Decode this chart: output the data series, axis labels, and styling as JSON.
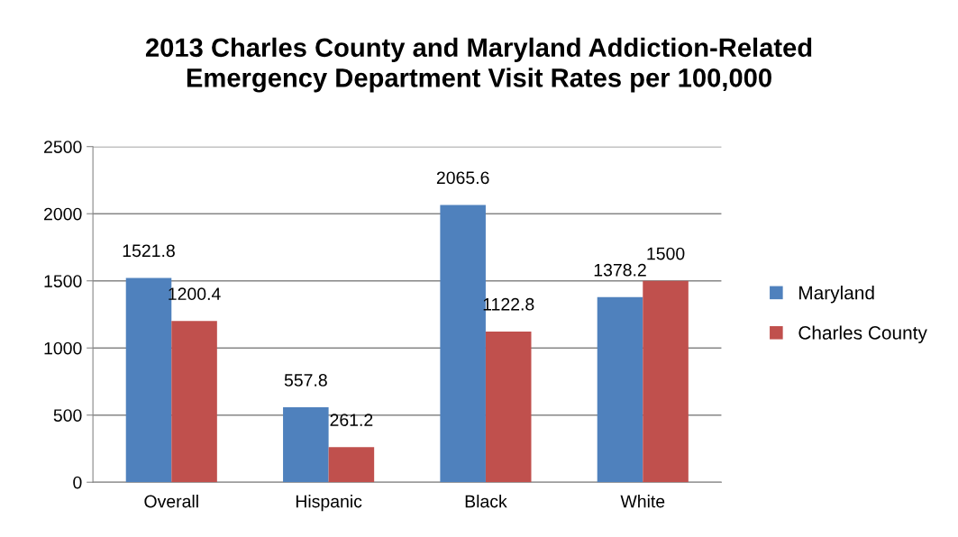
{
  "chart_data": {
    "type": "bar",
    "title": "2013 Charles County and Maryland Addiction-Related\nEmergency Department Visit Rates per 100,000",
    "categories": [
      "Overall",
      "Hispanic",
      "Black",
      "White"
    ],
    "series": [
      {
        "name": "Maryland",
        "color": "#4f81bd",
        "values": [
          1521.8,
          557.8,
          2065.6,
          1378.2
        ]
      },
      {
        "name": "Charles County",
        "color": "#c0504d",
        "values": [
          1200.4,
          261.2,
          1122.8,
          1500
        ]
      }
    ],
    "ylim": [
      0,
      2500
    ],
    "yticks": [
      0,
      500,
      1000,
      1500,
      2000,
      2500
    ],
    "grid": "y",
    "legend": "right",
    "data_labels": true
  }
}
